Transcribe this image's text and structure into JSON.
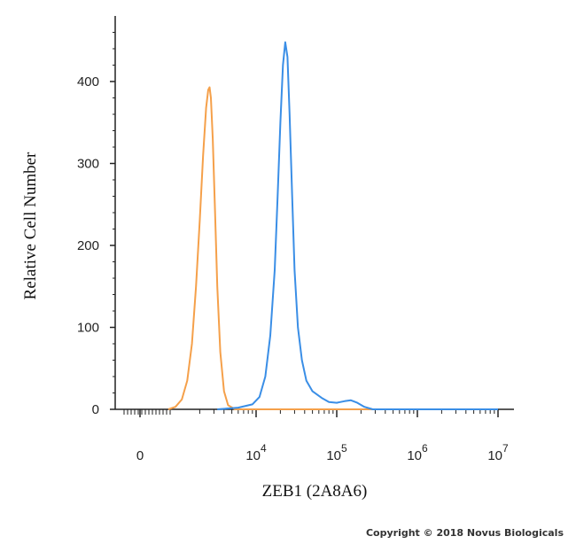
{
  "chart_data": {
    "type": "line",
    "xlabel": "ZEB1 (2A8A6)",
    "ylabel": "Relative Cell Number",
    "x_scale": "biexponential",
    "x_ticks": [
      {
        "value": 0,
        "base": "0",
        "exp": ""
      },
      {
        "value": 10000,
        "base": "10",
        "exp": "4"
      },
      {
        "value": 100000,
        "base": "10",
        "exp": "5"
      },
      {
        "value": 1000000,
        "base": "10",
        "exp": "6"
      },
      {
        "value": 10000000,
        "base": "10",
        "exp": "7"
      }
    ],
    "y_ticks": [
      "0",
      "100",
      "200",
      "300",
      "400"
    ],
    "ylim": [
      0,
      480
    ],
    "grid": false,
    "series": [
      {
        "color": "#F5A04A",
        "points": [
          [
            800,
            0
          ],
          [
            1000,
            3
          ],
          [
            1200,
            12
          ],
          [
            1400,
            35
          ],
          [
            1600,
            80
          ],
          [
            1800,
            150
          ],
          [
            2000,
            230
          ],
          [
            2200,
            310
          ],
          [
            2400,
            368
          ],
          [
            2550,
            390
          ],
          [
            2650,
            393
          ],
          [
            2750,
            380
          ],
          [
            2900,
            330
          ],
          [
            3100,
            240
          ],
          [
            3300,
            150
          ],
          [
            3600,
            70
          ],
          [
            4000,
            22
          ],
          [
            4500,
            5
          ],
          [
            5500,
            0
          ],
          [
            10000000,
            0
          ]
        ]
      },
      {
        "color": "#3A8EE6",
        "points": [
          [
            3300,
            0
          ],
          [
            6000,
            2
          ],
          [
            9000,
            6
          ],
          [
            11000,
            15
          ],
          [
            13000,
            40
          ],
          [
            15000,
            90
          ],
          [
            17000,
            170
          ],
          [
            18500,
            260
          ],
          [
            20000,
            350
          ],
          [
            21500,
            420
          ],
          [
            23000,
            448
          ],
          [
            24500,
            430
          ],
          [
            26000,
            360
          ],
          [
            28000,
            260
          ],
          [
            30000,
            170
          ],
          [
            33000,
            100
          ],
          [
            37000,
            60
          ],
          [
            42000,
            35
          ],
          [
            50000,
            22
          ],
          [
            65000,
            14
          ],
          [
            80000,
            9
          ],
          [
            100000,
            8
          ],
          [
            125000,
            10
          ],
          [
            150000,
            11
          ],
          [
            180000,
            8
          ],
          [
            220000,
            3
          ],
          [
            280000,
            0
          ],
          [
            10000000,
            0
          ]
        ]
      }
    ]
  },
  "copyright": "Copyright © 2018 Novus Biologicals"
}
